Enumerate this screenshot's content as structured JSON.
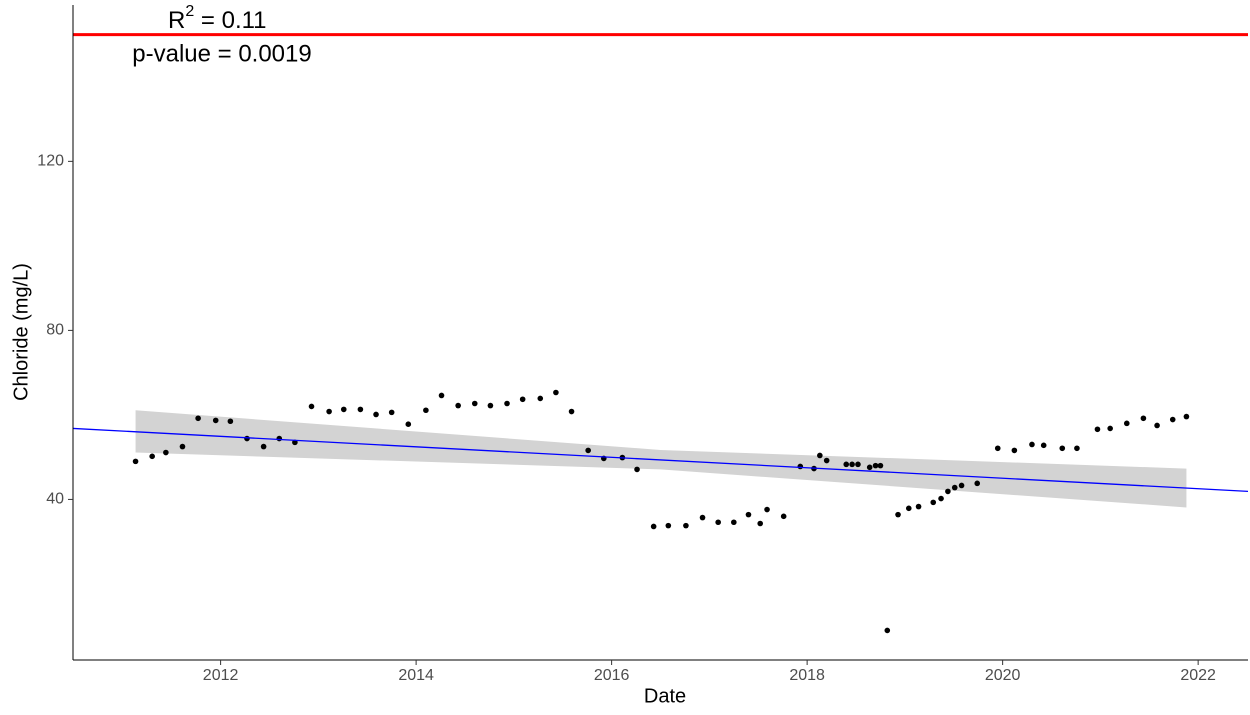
{
  "chart_data": {
    "type": "scatter",
    "x_label": "Date",
    "y_label": "Chloride (mg/L)",
    "annotations": [
      {
        "base": "R",
        "sup": "2",
        "rest": " = 0.11"
      },
      {
        "text": "p-value = 0.0019"
      }
    ],
    "xlim": [
      2010.49,
      2022.51
    ],
    "xticks": [
      2012,
      2014,
      2016,
      2018,
      2020,
      2022
    ],
    "ylim": [
      2,
      157
    ],
    "yticks": [
      40,
      80,
      120
    ],
    "grid": false,
    "threshold": {
      "value": 150,
      "color": "#ff0000"
    },
    "trend": {
      "x": [
        2010.49,
        2022.51
      ],
      "values": [
        56.8,
        41.9
      ],
      "color": "#0000ff"
    },
    "band": {
      "x": [
        2011.13,
        2016.5,
        2021.88
      ],
      "lower": [
        51.1,
        47.1,
        38.1
      ],
      "upper": [
        61.1,
        51.7,
        47.3
      ],
      "color": "#d3d3d3"
    },
    "points": {
      "color": "#000000",
      "x": [
        2011.13,
        2011.3,
        2011.44,
        2011.61,
        2011.77,
        2011.95,
        2012.1,
        2012.27,
        2012.44,
        2012.6,
        2012.76,
        2012.93,
        2013.11,
        2013.26,
        2013.43,
        2013.59,
        2013.75,
        2013.92,
        2014.1,
        2014.26,
        2014.43,
        2014.6,
        2014.76,
        2014.93,
        2015.09,
        2015.27,
        2015.43,
        2015.59,
        2015.76,
        2015.92,
        2016.11,
        2016.26,
        2016.43,
        2016.58,
        2016.76,
        2016.93,
        2017.09,
        2017.25,
        2017.4,
        2017.52,
        2017.59,
        2017.76,
        2017.93,
        2018.07,
        2018.13,
        2018.2,
        2018.4,
        2018.46,
        2018.52,
        2018.64,
        2018.7,
        2018.75,
        2018.82,
        2018.93,
        2019.04,
        2019.14,
        2019.29,
        2019.37,
        2019.44,
        2019.51,
        2019.58,
        2019.74,
        2019.95,
        2020.12,
        2020.3,
        2020.42,
        2020.61,
        2020.76,
        2020.97,
        2021.1,
        2021.27,
        2021.44,
        2021.58,
        2021.74,
        2021.88
      ],
      "values": [
        49.0,
        50.2,
        51.1,
        52.5,
        59.2,
        58.7,
        58.5,
        54.4,
        52.5,
        54.4,
        53.5,
        62.0,
        60.8,
        61.3,
        61.3,
        60.1,
        60.6,
        57.8,
        61.1,
        64.6,
        62.2,
        62.7,
        62.2,
        62.7,
        63.7,
        63.9,
        65.3,
        60.8,
        51.6,
        49.7,
        49.9,
        47.1,
        33.6,
        33.8,
        33.8,
        35.7,
        34.6,
        34.6,
        36.4,
        34.3,
        37.6,
        36.0,
        47.8,
        47.3,
        50.4,
        49.2,
        48.3,
        48.3,
        48.3,
        47.6,
        48.0,
        48.0,
        9.0,
        36.4,
        37.9,
        38.3,
        39.3,
        40.2,
        41.9,
        42.8,
        43.3,
        43.8,
        52.1,
        51.6,
        53.0,
        52.8,
        52.1,
        52.1,
        56.6,
        56.8,
        58.0,
        59.2,
        57.5,
        58.9,
        59.6
      ]
    }
  }
}
